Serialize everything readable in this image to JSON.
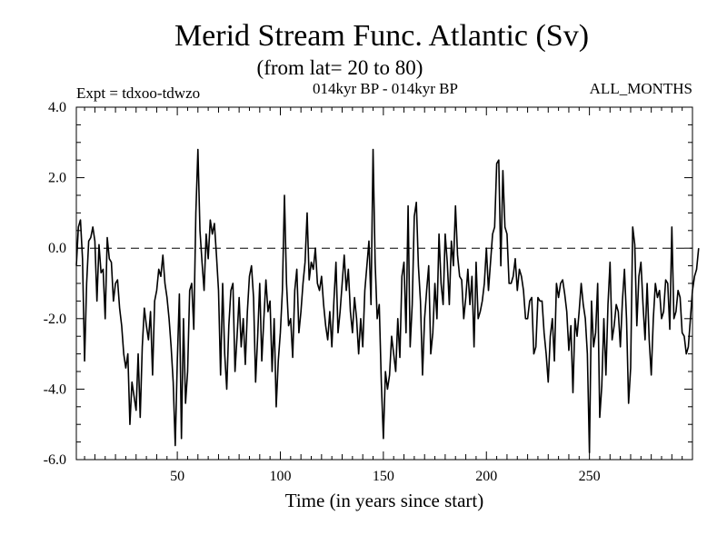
{
  "chart_data": {
    "type": "line",
    "title": "Merid Stream Func. Atlantic (Sv)",
    "subtitle": "(from lat= 20 to 80)",
    "annotations": {
      "left": "Expt = tdxoo-tdwzo",
      "center": "014kyr BP - 014kyr BP",
      "right": "ALL_MONTHS"
    },
    "xlabel": "Time (in years since start)",
    "ylabel": "",
    "xlim": [
      1,
      300
    ],
    "ylim": [
      -6.0,
      4.0
    ],
    "x_ticks": [
      50,
      100,
      150,
      200,
      250
    ],
    "x_tick_labels": [
      "50",
      "100",
      "150",
      "200",
      "250"
    ],
    "y_ticks": [
      -6.0,
      -4.0,
      -2.0,
      0.0,
      2.0,
      4.0
    ],
    "y_tick_labels": [
      "-6.0",
      "-4.0",
      "-2.0",
      "0.0",
      "2.0",
      "4.0"
    ],
    "reference_line": {
      "y": 0.0,
      "style": "dashed"
    },
    "grid": false,
    "series": [
      {
        "x_start": 1,
        "x_step": 1,
        "values": [
          -0.5,
          0.6,
          0.8,
          -0.3,
          -3.2,
          -1.0,
          0.2,
          0.3,
          0.6,
          0.2,
          -1.5,
          0.1,
          -0.7,
          -0.6,
          -2.0,
          0.3,
          -0.3,
          -0.4,
          -1.5,
          -1.0,
          -0.9,
          -1.7,
          -2.2,
          -3.0,
          -3.4,
          -3.0,
          -5.0,
          -3.8,
          -4.2,
          -4.6,
          -3.0,
          -4.8,
          -2.8,
          -1.7,
          -2.2,
          -2.6,
          -1.8,
          -3.6,
          -1.5,
          -1.2,
          -0.6,
          -0.8,
          -0.2,
          -1.0,
          -1.4,
          -2.0,
          -2.8,
          -3.8,
          -5.6,
          -3.2,
          -1.3,
          -5.4,
          -2.0,
          -4.4,
          -3.5,
          -1.2,
          -1.0,
          -2.3,
          1.0,
          2.8,
          0.5,
          -0.4,
          -1.2,
          0.4,
          -0.3,
          0.8,
          0.4,
          0.7,
          -0.2,
          -1.2,
          -3.6,
          -1.0,
          -3.0,
          -4.0,
          -2.2,
          -1.2,
          -1.0,
          -3.5,
          -2.5,
          -1.4,
          -2.8,
          -2.0,
          -3.3,
          -1.8,
          -0.8,
          -0.5,
          -1.4,
          -3.8,
          -2.5,
          -1.0,
          -3.2,
          -2.0,
          -0.9,
          -1.8,
          -1.5,
          -3.5,
          -2.0,
          -4.5,
          -3.2,
          -2.4,
          -1.2,
          1.5,
          -1.0,
          -2.2,
          -2.0,
          -3.1,
          -1.2,
          -0.6,
          -2.4,
          -1.8,
          -1.0,
          -0.4,
          1.0,
          -0.9,
          -0.4,
          -0.6,
          0.0,
          -1.0,
          -1.2,
          -0.8,
          -1.6,
          -2.2,
          -2.6,
          -1.8,
          -2.8,
          -1.5,
          -0.4,
          -2.4,
          -1.8,
          -1.0,
          -0.2,
          -1.2,
          -0.6,
          -1.8,
          -2.4,
          -1.4,
          -2.0,
          -3.0,
          -2.0,
          -2.8,
          -1.2,
          -0.5,
          0.2,
          -1.6,
          2.8,
          -0.4,
          -2.0,
          -1.6,
          -3.8,
          -5.4,
          -3.5,
          -4.0,
          -3.6,
          -2.5,
          -3.0,
          -3.5,
          -2.0,
          -3.1,
          -0.8,
          -0.4,
          -2.4,
          1.2,
          -2.8,
          -1.6,
          0.9,
          1.3,
          -0.5,
          -1.5,
          -3.6,
          -2.0,
          -1.2,
          -0.5,
          -3.0,
          -2.4,
          -1.0,
          -2.0,
          0.4,
          -1.0,
          -1.6,
          0.4,
          -0.4,
          -1.6,
          0.2,
          -0.5,
          1.2,
          -0.2,
          -0.8,
          -0.9,
          -2.0,
          -1.4,
          -0.6,
          -1.6,
          -0.8,
          -2.8,
          -0.4,
          -2.0,
          -1.8,
          -1.5,
          -1.0,
          0.0,
          -1.2,
          -0.4,
          0.4,
          0.6,
          2.4,
          2.5,
          -0.5,
          2.2,
          0.6,
          0.4,
          -1.0,
          -1.0,
          -0.8,
          -0.3,
          -1.2,
          -0.6,
          -0.8,
          -1.2,
          -2.0,
          -2.0,
          -1.5,
          -1.4,
          -3.0,
          -2.8,
          -1.4,
          -1.5,
          -1.5,
          -2.4,
          -3.0,
          -3.8,
          -2.5,
          -2.0,
          -3.2,
          -1.0,
          -1.4,
          -1.0,
          -0.9,
          -1.3,
          -1.8,
          -2.9,
          -2.2,
          -4.1,
          -2.0,
          -2.5,
          -1.8,
          -1.0,
          -1.6,
          -2.0,
          -3.0,
          -5.8,
          -1.5,
          -2.8,
          -2.4,
          -1.0,
          -4.8,
          -3.9,
          -2.0,
          -3.6,
          -1.6,
          -0.4,
          -2.6,
          -2.2,
          -1.6,
          -1.8,
          -2.8,
          -1.5,
          -0.6,
          -2.0,
          -4.4,
          -3.4,
          0.6,
          0.1,
          -2.2,
          -0.8,
          -0.4,
          -1.6,
          -2.6,
          -1.0,
          -2.6,
          -3.6,
          -2.0,
          -1.0,
          -1.4,
          -1.2,
          -2.0,
          -1.8,
          -0.9,
          -1.0,
          -2.3,
          0.6,
          -2.0,
          -1.8,
          -1.2,
          -1.4,
          -2.4,
          -2.5,
          -3.0,
          -2.8,
          -2.0,
          -1.2,
          -0.8,
          -0.6,
          0.0
        ]
      }
    ]
  }
}
